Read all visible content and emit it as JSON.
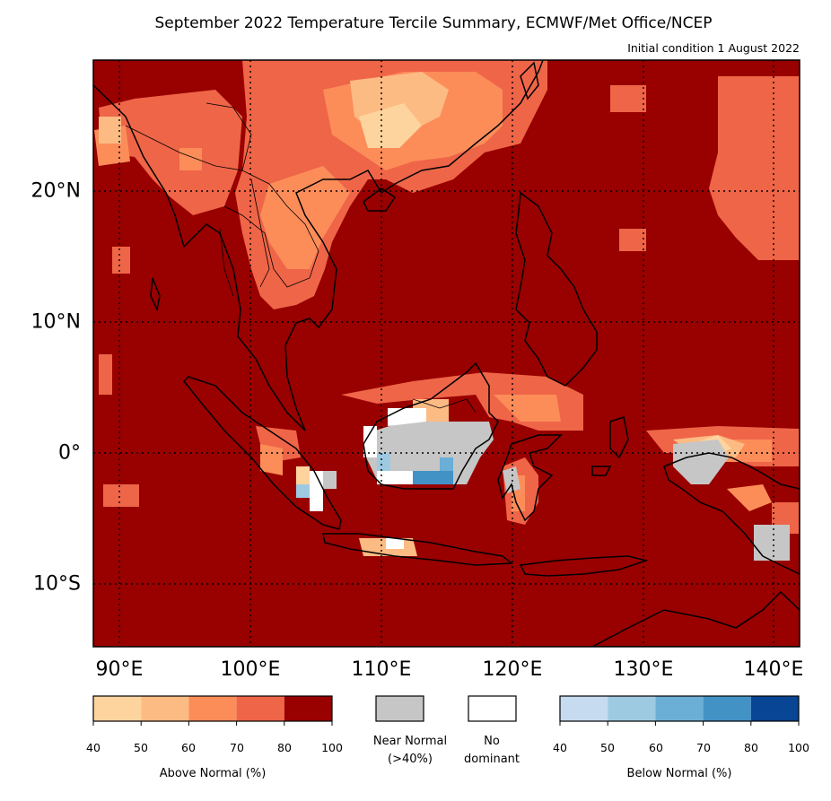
{
  "title": "September 2022 Temperature Tercile Summary, ECMWF/Met Office/NCEP",
  "subtitle": "Initial condition 1 August 2022",
  "axes": {
    "lon_labels": [
      "90°E",
      "100°E",
      "110°E",
      "120°E",
      "130°E",
      "140°E"
    ],
    "lat_labels": [
      "20°N",
      "10°N",
      "0°",
      "10°S"
    ],
    "lon_range": [
      88,
      142
    ],
    "lat_range": [
      -15,
      30
    ]
  },
  "legend": {
    "above_normal": {
      "caption": "Above Normal (%)",
      "ticks": [
        "40",
        "50",
        "60",
        "70",
        "80",
        "100"
      ],
      "colors": [
        "#fdd49e",
        "#fdbb84",
        "#fc8d59",
        "#ef6548",
        "#990000"
      ]
    },
    "near_normal": {
      "caption_line1": "Near Normal",
      "caption_line2": "(>40%)",
      "color": "#c6c6c6"
    },
    "no_dominant": {
      "caption_line1": "No",
      "caption_line2": "dominant",
      "color": "#ffffff"
    },
    "below_normal": {
      "caption": "Below Normal (%)",
      "ticks": [
        "40",
        "50",
        "60",
        "70",
        "80",
        "100"
      ],
      "colors": [
        "#c6dbef",
        "#9ecae1",
        "#6baed6",
        "#4292c6",
        "#084594"
      ]
    }
  },
  "colors": {
    "dominant_above_80": "#990000",
    "above_70": "#ef6548",
    "above_60": "#fc8d59",
    "above_50": "#fdbb84",
    "above_40": "#fdd49e",
    "near_normal": "#c6c6c6",
    "below_60": "#6baed6",
    "below_70": "#4292c6"
  }
}
